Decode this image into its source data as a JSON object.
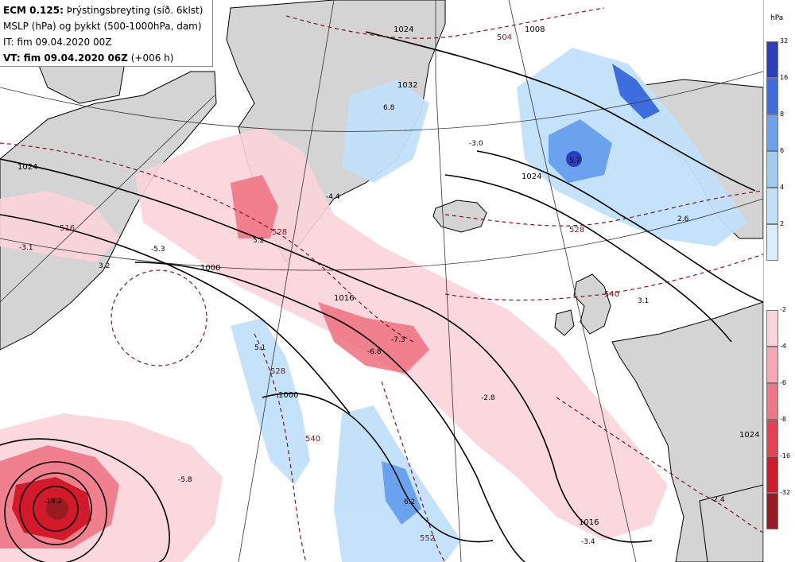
{
  "header": {
    "model": "ECM 0.125:",
    "product": "Þrýstingsbreyting (síð. 6klst)",
    "line2": "MSLP (hPa) og þykkt (500-1000hPa, dam)",
    "issued": "IT: fim 09.04.2020 00Z",
    "valid": "VT: fim 09.04.2020 06Z",
    "lead": "(+006 h)"
  },
  "legend": {
    "unit": "hPa",
    "rise": {
      "ticks": [
        "32",
        "16",
        "8",
        "6",
        "4",
        "2"
      ],
      "colors": [
        "#2a3fbd",
        "#3d6ee0",
        "#6ba2ee",
        "#9fcbf5",
        "#c1e0fa",
        "#d9eefc"
      ]
    },
    "fall": {
      "ticks": [
        "-2",
        "-4",
        "-6",
        "-8",
        "-16",
        "-32"
      ],
      "colors": [
        "#fbd4da",
        "#f7a7b3",
        "#f07785",
        "#e4404f",
        "#d21a2a",
        "#9a1a22"
      ]
    }
  },
  "map": {
    "isobar_labels": [
      "1024",
      "1024",
      "1032",
      "1008",
      "1016",
      "1000",
      "1000",
      "1016",
      "1024",
      "1024"
    ],
    "thickness_labels": [
      "504",
      "528",
      "528",
      "540",
      "528",
      "540",
      "552",
      "516"
    ],
    "tendency_values": [
      "-3.1",
      "3.2",
      "-5.3",
      "5.2",
      "-4.4",
      "6.8",
      "-3.0",
      "5.7",
      "2.6",
      "3.1",
      "5.1",
      "-6.8",
      "-7.3",
      "-2.8",
      "-5.8",
      "-19.2",
      "6.2",
      "-2.4",
      "-3.4"
    ],
    "colors": {
      "land": "#d4d4d4",
      "coast": "#000000",
      "isobar": "#000000",
      "thickness": "#7a1622"
    }
  }
}
